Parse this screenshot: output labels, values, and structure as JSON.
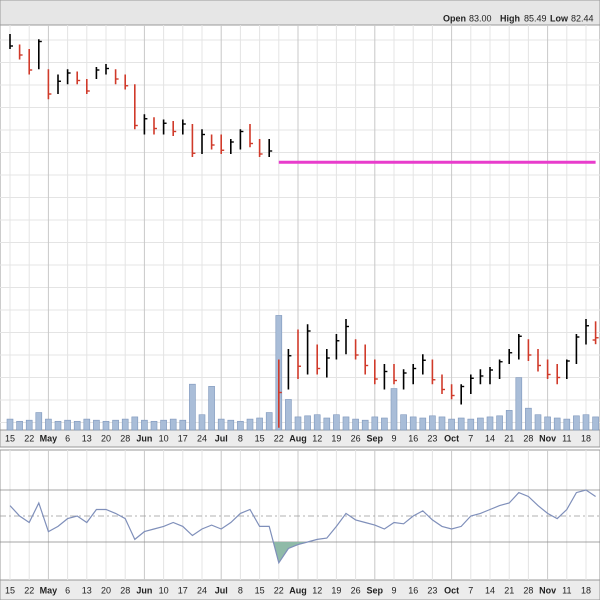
{
  "chart_data": {
    "type": "ohlc",
    "header": [
      {
        "label": "Open",
        "value": 83,
        "value_label": "83.00"
      },
      {
        "label": "High",
        "value": 85.49
      },
      {
        "label": "Low",
        "value": 82.44
      }
    ],
    "categories": [
      "15",
      null,
      "22",
      null,
      "May",
      null,
      "6",
      null,
      "13",
      null,
      "20",
      null,
      "28",
      null,
      "Jun",
      null,
      "10",
      null,
      "17",
      null,
      "24",
      null,
      "Jul",
      null,
      "8",
      null,
      "15",
      null,
      "22",
      null,
      "Aug",
      null,
      "12",
      null,
      "19",
      null,
      "26",
      null,
      "Sep",
      null,
      "9",
      null,
      "16",
      null,
      "23",
      null,
      "Oct",
      null,
      "7",
      null,
      "14",
      null,
      "21",
      null,
      "28",
      null,
      "Nov",
      null,
      "11",
      null,
      "18",
      null
    ],
    "high": [
      123.8,
      122.4,
      121.8,
      123.1,
      119.1,
      118.4,
      119.1,
      118.8,
      117.8,
      119.4,
      119.8,
      119.1,
      118.4,
      117.1,
      113.1,
      112.7,
      112.4,
      112.2,
      112.4,
      111.8,
      111.1,
      110.4,
      110.4,
      109.8,
      111.1,
      111.8,
      109.8,
      109.8,
      80.4,
      81.8,
      84.4,
      85.1,
      82.4,
      81.8,
      83.8,
      85.8,
      83.1,
      82.4,
      80.4,
      79.8,
      79.8,
      79.1,
      79.8,
      81.1,
      80.4,
      78.4,
      77.1,
      77.1,
      78.4,
      79.1,
      79.4,
      80.4,
      81.8,
      83.8,
      83.1,
      81.8,
      80.4,
      79.8,
      80.4,
      83.8,
      85.8,
      85.49
    ],
    "low": [
      121.8,
      120.4,
      118.4,
      119.1,
      115.1,
      115.8,
      117.1,
      117.1,
      115.8,
      117.8,
      118.4,
      117.1,
      116.4,
      111.1,
      110.4,
      110.4,
      110.4,
      110.2,
      110.4,
      107.4,
      107.8,
      108.4,
      107.8,
      107.8,
      108.4,
      108.7,
      107.4,
      107.4,
      71.3,
      76.4,
      77.8,
      78.4,
      78.4,
      78.0,
      80.4,
      81.1,
      80.4,
      78.4,
      77.1,
      76.4,
      77.1,
      76.4,
      77.1,
      78.4,
      77.1,
      75.8,
      75.1,
      74.4,
      75.8,
      77.1,
      77.1,
      77.8,
      79.8,
      80.4,
      80.2,
      78.8,
      77.8,
      77.1,
      77.8,
      79.8,
      82.4,
      82.44
    ],
    "close": [
      122.2,
      121.0,
      119.0,
      122.8,
      115.8,
      117.5,
      118.6,
      117.6,
      116.2,
      119.0,
      119.2,
      117.8,
      116.9,
      111.6,
      112.5,
      111.2,
      111.9,
      110.8,
      111.8,
      107.9,
      110.4,
      109.0,
      108.3,
      109.4,
      110.8,
      109.2,
      107.8,
      108.2,
      76.0,
      80.9,
      79.5,
      84.2,
      79.2,
      80.6,
      82.9,
      84.8,
      81.0,
      79.6,
      77.8,
      78.8,
      77.6,
      78.6,
      79.2,
      80.3,
      77.7,
      76.4,
      75.6,
      76.8,
      77.9,
      78.2,
      79.0,
      80.1,
      81.3,
      83.5,
      81.0,
      79.6,
      78.4,
      78.0,
      80.2,
      83.4,
      84.9,
      83.3
    ],
    "volume": [
      10,
      8,
      9,
      16,
      10,
      8,
      9,
      8,
      10,
      9,
      8,
      9,
      10,
      12,
      9,
      8,
      9,
      10,
      9,
      42,
      14,
      40,
      10,
      9,
      8,
      10,
      11,
      16,
      105,
      28,
      12,
      13,
      14,
      11,
      14,
      12,
      10,
      9,
      12,
      11,
      38,
      14,
      12,
      11,
      13,
      12,
      10,
      11,
      10,
      11,
      12,
      13,
      18,
      48,
      20,
      14,
      12,
      11,
      10,
      13,
      14,
      12
    ],
    "up_color": "#000000",
    "down_color": "#d03a2a",
    "volume_color": "#a9bdd8",
    "ylim": [
      71,
      125
    ],
    "yticks": [
      72,
      75,
      78,
      81,
      84,
      87,
      90,
      93,
      96,
      99,
      102,
      105,
      108,
      111,
      114,
      117,
      120,
      123
    ],
    "volume_ylim": [
      0,
      110
    ],
    "grid": true,
    "level_line": {
      "color": "#e83ccc",
      "values": [
        null,
        null,
        null,
        null,
        null,
        null,
        null,
        null,
        null,
        null,
        null,
        null,
        null,
        null,
        null,
        null,
        null,
        null,
        null,
        null,
        null,
        null,
        null,
        null,
        null,
        null,
        null,
        null,
        106.7,
        106.7,
        106.7,
        106.7,
        106.7,
        106.7,
        106.7,
        106.7,
        106.7,
        106.7,
        106.7,
        106.7,
        106.7,
        106.7,
        106.7,
        106.7,
        106.7,
        106.7,
        106.7,
        106.7,
        106.7,
        106.7,
        106.7,
        106.7,
        106.7,
        106.7,
        106.7,
        106.7,
        106.7,
        106.7,
        106.7,
        106.7,
        106.7,
        106.7
      ]
    },
    "indicator": {
      "type": "line",
      "color": "#7f8fba",
      "fill_color": "#8fbaa8",
      "ylim": [
        0,
        100
      ],
      "levels": [
        70,
        50,
        30
      ],
      "values": [
        58,
        50,
        45,
        60,
        38,
        42,
        48,
        50,
        45,
        55,
        55,
        52,
        48,
        32,
        38,
        40,
        42,
        45,
        42,
        35,
        40,
        43,
        40,
        45,
        52,
        55,
        42,
        42,
        14,
        25,
        28,
        30,
        32,
        33,
        42,
        52,
        47,
        45,
        43,
        40,
        45,
        44,
        50,
        54,
        47,
        42,
        40,
        42,
        50,
        52,
        55,
        58,
        60,
        68,
        65,
        58,
        52,
        48,
        55,
        68,
        70,
        65
      ]
    }
  }
}
